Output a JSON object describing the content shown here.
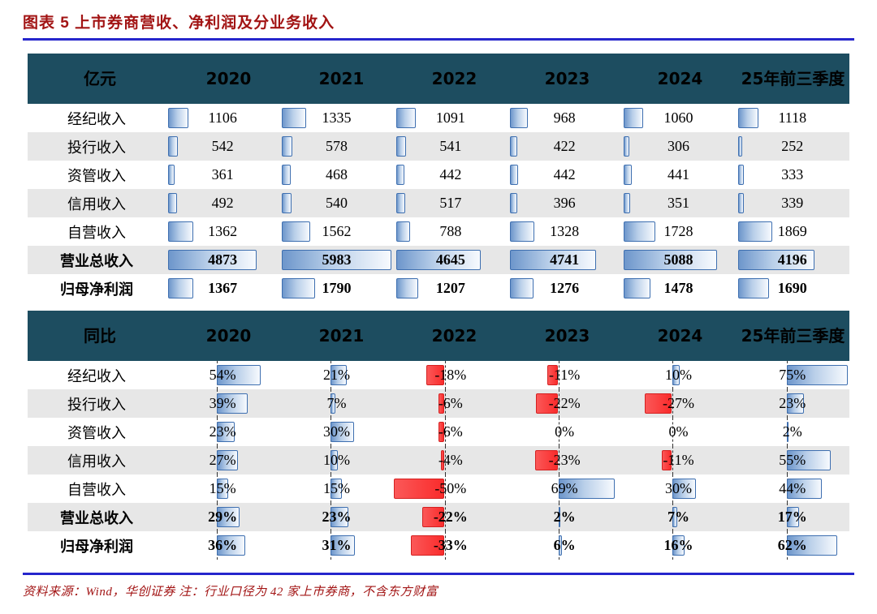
{
  "title": "图表 5  上市券商营收、净利润及分业务收入",
  "footer": "资料来源：Wind，华创证券   注：行业口径为 42 家上市券商，不含东方财富",
  "colors": {
    "title_color": "#A21414",
    "rule_color": "#2626CC",
    "header_bg": "#1D4D60",
    "positive_bar": "#6D96CB",
    "negative_bar": "#F92C2C",
    "stripe_gray": "#E7E7E7"
  },
  "chart_data": [
    {
      "type": "table",
      "title": "亿元",
      "columns": [
        "2020",
        "2021",
        "2022",
        "2023",
        "2024",
        "25年前三季度"
      ],
      "rows": [
        {
          "label": "经纪收入",
          "values": [
            1106,
            1335,
            1091,
            968,
            1060,
            1118
          ],
          "bold": false
        },
        {
          "label": "投行收入",
          "values": [
            542,
            578,
            541,
            422,
            306,
            252
          ],
          "bold": false
        },
        {
          "label": "资管收入",
          "values": [
            361,
            468,
            442,
            442,
            441,
            333
          ],
          "bold": false
        },
        {
          "label": "信用收入",
          "values": [
            492,
            540,
            517,
            396,
            351,
            339
          ],
          "bold": false
        },
        {
          "label": "自营收入",
          "values": [
            1362,
            1562,
            788,
            1328,
            1728,
            1869
          ],
          "bold": false
        },
        {
          "label": "营业总收入",
          "values": [
            4873,
            5983,
            4645,
            4741,
            5088,
            4196
          ],
          "bold": true
        },
        {
          "label": "归母净利润",
          "values": [
            1367,
            1790,
            1207,
            1276,
            1478,
            1690
          ],
          "bold": true
        }
      ],
      "bar_scale_max": 5983,
      "layout": "in-cell data bars from left, blue gradient"
    },
    {
      "type": "table",
      "title": "同比",
      "unit": "%",
      "columns": [
        "2020",
        "2021",
        "2022",
        "2023",
        "2024",
        "25年前三季度"
      ],
      "rows": [
        {
          "label": "经纪收入",
          "values": [
            54,
            21,
            -18,
            -11,
            10,
            75
          ],
          "bold": false
        },
        {
          "label": "投行收入",
          "values": [
            39,
            7,
            -6,
            -22,
            -27,
            23
          ],
          "bold": false
        },
        {
          "label": "资管收入",
          "values": [
            23,
            30,
            -6,
            0,
            0,
            2
          ],
          "bold": false
        },
        {
          "label": "信用收入",
          "values": [
            27,
            10,
            -4,
            -23,
            -11,
            55
          ],
          "bold": false
        },
        {
          "label": "自营收入",
          "values": [
            15,
            15,
            -50,
            69,
            30,
            44
          ],
          "bold": false
        },
        {
          "label": "营业总收入",
          "values": [
            29,
            23,
            -22,
            2,
            7,
            17
          ],
          "bold": true
        },
        {
          "label": "归母净利润",
          "values": [
            36,
            31,
            -33,
            6,
            16,
            62
          ],
          "bold": true
        }
      ],
      "bar_axis_min": -50,
      "bar_axis_max": 75,
      "layout": "in-cell diverging data bars around dashed zero axis; positive blue gradient right, negative red left"
    }
  ]
}
